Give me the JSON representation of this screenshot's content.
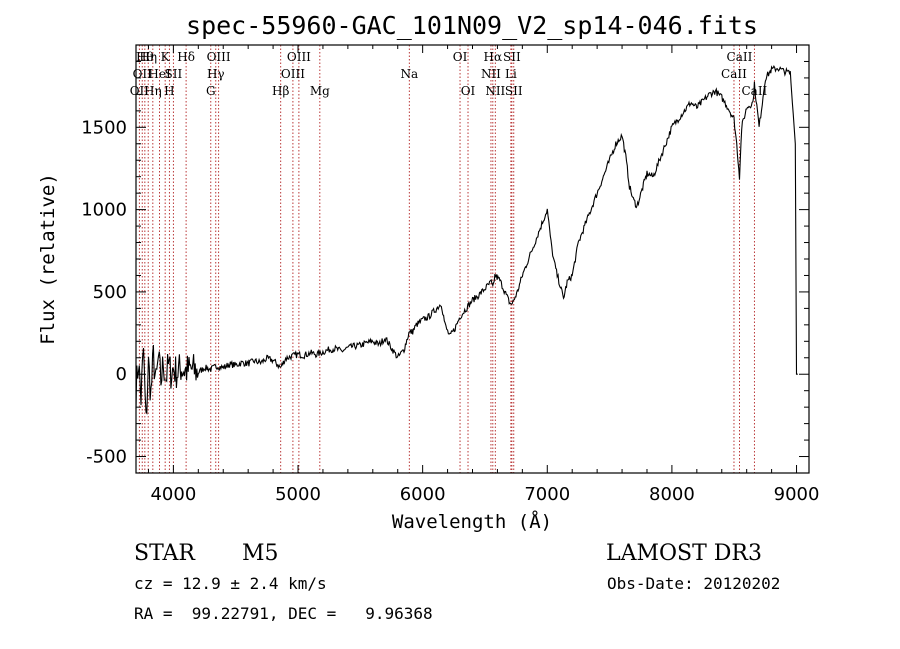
{
  "chart_data": {
    "type": "line",
    "title": "spec-55960-GAC_101N09_V2_sp14-046.fits",
    "xlabel": "Wavelength (Å)",
    "ylabel": "Flux (relative)",
    "xlim": [
      3700,
      9100
    ],
    "ylim": [
      -600,
      2000
    ],
    "xticks": [
      4000,
      5000,
      6000,
      7000,
      8000,
      9000
    ],
    "yticks": [
      -500,
      0,
      500,
      1000,
      1500
    ],
    "grid": false,
    "series": [
      {
        "name": "flux",
        "x": [
          3700,
          3720,
          3740,
          3760,
          3780,
          3800,
          3820,
          3840,
          3860,
          3880,
          3900,
          3920,
          3940,
          3960,
          3980,
          4000,
          4030,
          4060,
          4100,
          4150,
          4200,
          4250,
          4300,
          4350,
          4400,
          4450,
          4500,
          4550,
          4600,
          4650,
          4700,
          4750,
          4800,
          4860,
          4900,
          4950,
          5000,
          5050,
          5100,
          5150,
          5200,
          5250,
          5300,
          5350,
          5400,
          5450,
          5500,
          5550,
          5600,
          5650,
          5700,
          5750,
          5800,
          5850,
          5890,
          5920,
          5950,
          6000,
          6050,
          6100,
          6150,
          6180,
          6200,
          6220,
          6260,
          6300,
          6350,
          6400,
          6450,
          6500,
          6550,
          6563,
          6580,
          6620,
          6660,
          6700,
          6720,
          6760,
          6800,
          6850,
          6900,
          6950,
          7000,
          7030,
          7050,
          7080,
          7100,
          7130,
          7160,
          7200,
          7250,
          7300,
          7350,
          7400,
          7450,
          7500,
          7550,
          7600,
          7630,
          7660,
          7690,
          7720,
          7760,
          7800,
          7850,
          7900,
          7950,
          8000,
          8050,
          8100,
          8150,
          8200,
          8250,
          8300,
          8350,
          8400,
          8450,
          8498,
          8520,
          8542,
          8560,
          8600,
          8650,
          8662,
          8700,
          8750,
          8800,
          8850,
          8900,
          8950,
          8990,
          9000,
          9010
        ],
        "y": [
          -100,
          80,
          -150,
          150,
          -300,
          60,
          -120,
          110,
          -60,
          90,
          -40,
          70,
          -20,
          50,
          10,
          30,
          10,
          40,
          20,
          30,
          10,
          40,
          30,
          50,
          40,
          60,
          55,
          70,
          65,
          80,
          70,
          95,
          85,
          40,
          95,
          110,
          120,
          115,
          130,
          120,
          135,
          150,
          155,
          140,
          160,
          170,
          175,
          190,
          200,
          180,
          220,
          160,
          100,
          150,
          250,
          260,
          300,
          330,
          350,
          390,
          430,
          300,
          260,
          230,
          280,
          350,
          400,
          450,
          480,
          520,
          560,
          520,
          600,
          570,
          500,
          430,
          430,
          500,
          600,
          700,
          800,
          900,
          1000,
          800,
          700,
          600,
          550,
          460,
          560,
          600,
          800,
          900,
          1000,
          1100,
          1200,
          1300,
          1400,
          1450,
          1320,
          1140,
          1060,
          1020,
          1120,
          1220,
          1200,
          1300,
          1400,
          1500,
          1550,
          1600,
          1650,
          1620,
          1660,
          1700,
          1720,
          1680,
          1620,
          1550,
          1400,
          1200,
          1500,
          1620,
          1650,
          1760,
          1500,
          1800,
          1850,
          1860,
          1840,
          1830,
          1400,
          0,
          0
        ]
      }
    ],
    "lines": [
      {
        "w": 3727,
        "label": "OII",
        "row": 2
      },
      {
        "w": 3750,
        "label": "OII",
        "row": 1
      },
      {
        "w": 3771,
        "label": "Hθ",
        "row": 0
      },
      {
        "w": 3798,
        "label": "Hη",
        "row": 0
      },
      {
        "w": 3835,
        "label": "Hη",
        "row": 2
      },
      {
        "w": 3889,
        "label": "HeI",
        "row": 1
      },
      {
        "w": 3934,
        "label": "K",
        "row": 0
      },
      {
        "w": 3968,
        "label": "H",
        "row": 2
      },
      {
        "w": 4000,
        "label": "SII",
        "row": 1
      },
      {
        "w": 4102,
        "label": "Hδ",
        "row": 0
      },
      {
        "w": 4300,
        "label": "G",
        "row": 2
      },
      {
        "w": 4340,
        "label": "Hγ",
        "row": 1
      },
      {
        "w": 4363,
        "label": "OIII",
        "row": 0
      },
      {
        "w": 4861,
        "label": "Hβ",
        "row": 2
      },
      {
        "w": 4959,
        "label": "OIII",
        "row": 1
      },
      {
        "w": 5007,
        "label": "OIII",
        "row": 0
      },
      {
        "w": 5175,
        "label": "Mg",
        "row": 2
      },
      {
        "w": 5893,
        "label": "Na",
        "row": 1
      },
      {
        "w": 6300,
        "label": "OI",
        "row": 0
      },
      {
        "w": 6364,
        "label": "OI",
        "row": 2
      },
      {
        "w": 6548,
        "label": "NII",
        "row": 1
      },
      {
        "w": 6563,
        "label": "Hα",
        "row": 0
      },
      {
        "w": 6583,
        "label": "NII",
        "row": 2
      },
      {
        "w": 6708,
        "label": "Li",
        "row": 1
      },
      {
        "w": 6716,
        "label": "SII",
        "row": 0
      },
      {
        "w": 6731,
        "label": "SII",
        "row": 2
      },
      {
        "w": 8498,
        "label": "CaII",
        "row": 1
      },
      {
        "w": 8542,
        "label": "CaII",
        "row": 0
      },
      {
        "w": 8662,
        "label": "CaII",
        "row": 2
      }
    ],
    "line_color": "#b22222"
  },
  "info": {
    "class": "STAR",
    "subclass": "M5",
    "survey": "LAMOST DR3",
    "cz": "cz = 12.9 ± 2.4 km/s",
    "obs_date": "Obs-Date: 20120202",
    "radec": "RA =  99.22791, DEC =   9.96368"
  }
}
